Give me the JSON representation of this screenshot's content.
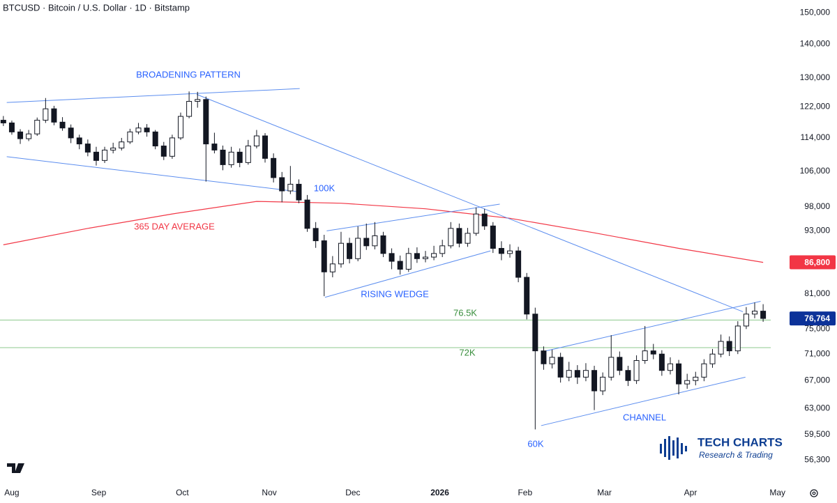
{
  "chart_data": {
    "type": "candlestick",
    "title": "BTCUSD · Bitcoin / U.S. Dollar · 1D · Bitstamp",
    "log_scale": true,
    "up_color": "#ffffff",
    "down_color": "#131722",
    "ylim": [
      53800,
      154200
    ],
    "yticks": [
      {
        "value": 150000,
        "label": "150,000"
      },
      {
        "value": 140000,
        "label": "140,000"
      },
      {
        "value": 130000,
        "label": "130,000"
      },
      {
        "value": 122000,
        "label": "122,000"
      },
      {
        "value": 114000,
        "label": "114,000"
      },
      {
        "value": 106000,
        "label": "106,000"
      },
      {
        "value": 98000,
        "label": "98,000"
      },
      {
        "value": 93000,
        "label": "93,000"
      },
      {
        "value": 81000,
        "label": "81,000"
      },
      {
        "value": 75000,
        "label": "75,000"
      },
      {
        "value": 71000,
        "label": "71,000"
      },
      {
        "value": 67000,
        "label": "67,000"
      },
      {
        "value": 63000,
        "label": "63,000"
      },
      {
        "value": 59500,
        "label": "59,500"
      },
      {
        "value": 56300,
        "label": "56,300"
      }
    ],
    "xlim": [
      -0.4,
      90.9
    ],
    "xticks": [
      {
        "value": 1,
        "label": "Aug"
      },
      {
        "value": 11.3,
        "label": "Sep"
      },
      {
        "value": 21.2,
        "label": "Oct"
      },
      {
        "value": 31.5,
        "label": "Nov"
      },
      {
        "value": 41.4,
        "label": "Dec"
      },
      {
        "value": 51.7,
        "label": "2026"
      },
      {
        "value": 61.8,
        "label": "Feb"
      },
      {
        "value": 71.2,
        "label": "Mar"
      },
      {
        "value": 81.4,
        "label": "Apr"
      },
      {
        "value": 91.7,
        "label": "May"
      }
    ],
    "candles": [
      [
        118500,
        119600,
        117000,
        117800
      ],
      [
        117800,
        118400,
        114800,
        115500
      ],
      [
        115500,
        116200,
        112500,
        113800
      ],
      [
        113800,
        116000,
        113200,
        115000
      ],
      [
        115000,
        119200,
        114500,
        118500
      ],
      [
        118500,
        124400,
        117800,
        121500
      ],
      [
        121500,
        122300,
        117200,
        118000
      ],
      [
        118000,
        119300,
        115800,
        116500
      ],
      [
        116500,
        117400,
        112700,
        114000
      ],
      [
        114000,
        114800,
        111200,
        112500
      ],
      [
        112500,
        113600,
        109500,
        110500
      ],
      [
        110500,
        111800,
        107300,
        108500
      ],
      [
        108500,
        111800,
        107900,
        111000
      ],
      [
        111000,
        112800,
        110200,
        111500
      ],
      [
        111500,
        114000,
        110900,
        113000
      ],
      [
        113000,
        116300,
        112500,
        115500
      ],
      [
        115500,
        117800,
        114900,
        116500
      ],
      [
        116500,
        117500,
        114300,
        115500
      ],
      [
        115500,
        116000,
        111200,
        112000
      ],
      [
        112000,
        113000,
        108600,
        109500
      ],
      [
        109500,
        114800,
        108900,
        114000
      ],
      [
        114000,
        120500,
        113500,
        119500
      ],
      [
        119500,
        126200,
        119000,
        123500
      ],
      [
        123500,
        126100,
        121800,
        124000
      ],
      [
        124000,
        124800,
        103600,
        112500
      ],
      [
        112500,
        115300,
        110200,
        111000
      ],
      [
        111000,
        112100,
        106200,
        107500
      ],
      [
        107500,
        111800,
        106800,
        110500
      ],
      [
        110500,
        111400,
        106900,
        108000
      ],
      [
        108000,
        113500,
        107500,
        112000
      ],
      [
        112000,
        116000,
        111400,
        114500
      ],
      [
        114500,
        115200,
        108000,
        109000
      ],
      [
        109000,
        110200,
        103400,
        104500
      ],
      [
        104500,
        105800,
        99000,
        101500
      ],
      [
        101500,
        107200,
        100800,
        103000
      ],
      [
        103000,
        104100,
        98800,
        99500
      ],
      [
        99500,
        100600,
        92800,
        93500
      ],
      [
        93500,
        94800,
        89600,
        91000
      ],
      [
        91000,
        92200,
        80600,
        85000
      ],
      [
        85000,
        88000,
        84000,
        86500
      ],
      [
        86500,
        92800,
        85800,
        90500
      ],
      [
        90500,
        91600,
        86600,
        87500
      ],
      [
        87500,
        93900,
        87000,
        91500
      ],
      [
        91500,
        94500,
        89200,
        90000
      ],
      [
        90000,
        94800,
        89300,
        92000
      ],
      [
        92000,
        92800,
        87800,
        88500
      ],
      [
        88500,
        89500,
        85500,
        87000
      ],
      [
        87000,
        88100,
        84500,
        85500
      ],
      [
        85500,
        89600,
        85000,
        88500
      ],
      [
        88500,
        89700,
        86700,
        87500
      ],
      [
        87500,
        89000,
        86800,
        87800
      ],
      [
        87800,
        90000,
        87200,
        88500
      ],
      [
        88500,
        91200,
        87800,
        90000
      ],
      [
        90000,
        94800,
        89500,
        93500
      ],
      [
        93500,
        94500,
        89700,
        90500
      ],
      [
        90500,
        93600,
        89800,
        92500
      ],
      [
        92500,
        97900,
        92000,
        96500
      ],
      [
        96500,
        97600,
        93200,
        94000
      ],
      [
        94000,
        94800,
        88600,
        89500
      ],
      [
        89500,
        90900,
        87200,
        88500
      ],
      [
        88500,
        90300,
        87700,
        89000
      ],
      [
        89000,
        89800,
        83100,
        84000
      ],
      [
        84000,
        84800,
        76600,
        77500
      ],
      [
        77500,
        78600,
        60200,
        71500
      ],
      [
        71500,
        72200,
        68600,
        69500
      ],
      [
        69500,
        71700,
        68800,
        70500
      ],
      [
        70500,
        71200,
        66700,
        67500
      ],
      [
        67500,
        69800,
        66900,
        68500
      ],
      [
        68500,
        69300,
        66500,
        67500
      ],
      [
        67500,
        69600,
        66900,
        68500
      ],
      [
        68500,
        69200,
        62800,
        65500
      ],
      [
        65500,
        68200,
        64900,
        67500
      ],
      [
        67500,
        74000,
        67000,
        70500
      ],
      [
        70500,
        71400,
        67800,
        68500
      ],
      [
        68500,
        69200,
        66200,
        67000
      ],
      [
        67000,
        70800,
        66500,
        70000
      ],
      [
        70000,
        75500,
        69500,
        71500
      ],
      [
        71500,
        72600,
        70200,
        71000
      ],
      [
        71000,
        71600,
        67700,
        68500
      ],
      [
        68500,
        70500,
        67900,
        69500
      ],
      [
        69500,
        70100,
        65000,
        66500
      ],
      [
        66500,
        68000,
        65800,
        67000
      ],
      [
        67000,
        68300,
        66300,
        67500
      ],
      [
        67500,
        70200,
        66900,
        69500
      ],
      [
        69500,
        71800,
        68900,
        71000
      ],
      [
        71000,
        74100,
        70500,
        73000
      ],
      [
        73000,
        73800,
        70700,
        71500
      ],
      [
        71500,
        76300,
        71000,
        75500
      ],
      [
        75500,
        78700,
        75000,
        77500
      ],
      [
        77500,
        79500,
        76800,
        78000
      ],
      [
        78000,
        79200,
        76200,
        76764
      ]
    ],
    "moving_average": {
      "color": "#f23645",
      "x": [
        0,
        10,
        20,
        30,
        40,
        50,
        60,
        70,
        80,
        90
      ],
      "values": [
        90200,
        93500,
        96500,
        99200,
        98800,
        97600,
        95600,
        92600,
        89500,
        86800
      ]
    },
    "levels": [
      {
        "value": 76500,
        "color": "#8cc88c"
      },
      {
        "value": 72000,
        "color": "#8cc88c"
      }
    ],
    "trendline_color": "#5b8def",
    "trendlines": [
      {
        "points": [
          [
            0.4,
            123200
          ],
          [
            35.1,
            127000
          ]
        ]
      },
      {
        "points": [
          [
            0.4,
            109400
          ],
          [
            35.1,
            101300
          ]
        ]
      },
      {
        "points": [
          [
            22.9,
            125400
          ],
          [
            87.6,
            77900
          ]
        ]
      },
      {
        "points": [
          [
            38.3,
            93000
          ],
          [
            58.8,
            98600
          ]
        ]
      },
      {
        "points": [
          [
            38.1,
            80400
          ],
          [
            57.7,
            89000
          ]
        ]
      },
      {
        "points": [
          [
            64.3,
            71500
          ],
          [
            89.7,
            79700
          ]
        ]
      },
      {
        "points": [
          [
            63.7,
            60700
          ],
          [
            87.9,
            67500
          ]
        ]
      }
    ],
    "annotations": [
      {
        "text": "BROADENING PATTERN",
        "color": "#2962ff"
      },
      {
        "text": "100K",
        "color": "#2962ff"
      },
      {
        "text": "365 DAY AVERAGE",
        "color": "#f23645"
      },
      {
        "text": "RISING WEDGE",
        "color": "#2962ff"
      },
      {
        "text": "76.5K",
        "color": "#388e3c"
      },
      {
        "text": "72K",
        "color": "#388e3c"
      },
      {
        "text": "60K",
        "color": "#2962ff"
      },
      {
        "text": "CHANNEL",
        "color": "#2962ff"
      }
    ],
    "price_tags": [
      {
        "value": 86800,
        "label": "86,800",
        "color": "#f23645"
      },
      {
        "value": 76764,
        "label": "76,764",
        "color": "#0c3299"
      }
    ],
    "logo": {
      "title": "TECH CHARTS",
      "subtitle": "Research & Trading"
    }
  }
}
